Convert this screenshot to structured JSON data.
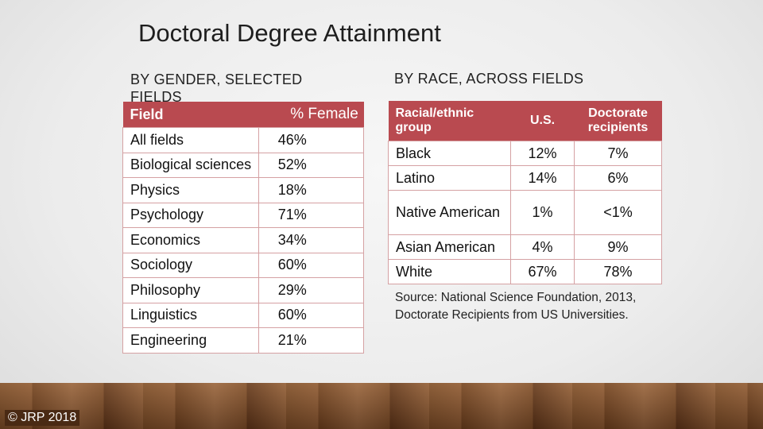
{
  "title": "Doctoral Degree Attainment",
  "left": {
    "subhead": "BY GENDER, SELECTED FIELDS",
    "headers": {
      "field": "Field",
      "pct": "% Female"
    },
    "rows": [
      {
        "field": "All fields",
        "pct": "46%"
      },
      {
        "field": "Biological sciences",
        "pct": "52%"
      },
      {
        "field": "Physics",
        "pct": "18%"
      },
      {
        "field": "Psychology",
        "pct": "71%"
      },
      {
        "field": "Economics",
        "pct": "34%"
      },
      {
        "field": "Sociology",
        "pct": "60%"
      },
      {
        "field": "Philosophy",
        "pct": "29%"
      },
      {
        "field": "Linguistics",
        "pct": "60%"
      },
      {
        "field": "Engineering",
        "pct": "21%"
      }
    ]
  },
  "right": {
    "subhead": "BY RACE, ACROSS FIELDS",
    "headers": {
      "group": "Racial/ethnic group",
      "us": "U.S.",
      "doc": "Doctorate recipients"
    },
    "rows": [
      {
        "group": "Black",
        "us": "12%",
        "doc": "7%"
      },
      {
        "group": "Latino",
        "us": "14%",
        "doc": "6%"
      },
      {
        "group": "Native American",
        "us": "1%",
        "doc": "<1%"
      },
      {
        "group": "Asian American",
        "us": "4%",
        "doc": "9%"
      },
      {
        "group": "White",
        "us": "67%",
        "doc": "78%"
      }
    ]
  },
  "source": "Source: National Science Foundation, 2013, Doctorate Recipients from US Universities.",
  "copyright": "© JRP 2018"
}
